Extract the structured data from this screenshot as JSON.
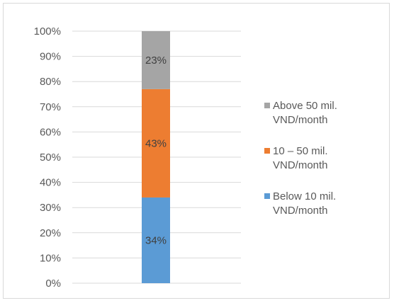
{
  "chart_data": {
    "type": "bar",
    "stacked": true,
    "categories": [
      ""
    ],
    "series": [
      {
        "name": "Below 10 mil. VND/month",
        "values": [
          34
        ],
        "label": "34%",
        "color": "#5b9bd5"
      },
      {
        "name": "10 – 50 mil. VND/month",
        "values": [
          43
        ],
        "label": "43%",
        "color": "#ed7d31"
      },
      {
        "name": "Above 50 mil. VND/month",
        "values": [
          23
        ],
        "label": "23%",
        "color": "#a5a5a5"
      }
    ],
    "ylim": [
      0,
      100
    ],
    "yticks": [
      "0%",
      "10%",
      "20%",
      "30%",
      "40%",
      "50%",
      "60%",
      "70%",
      "80%",
      "90%",
      "100%"
    ],
    "grid": true,
    "legend": {
      "position": "right",
      "items": [
        {
          "lines": [
            "Above 50 mil.",
            "VND/month"
          ],
          "color": "#a5a5a5"
        },
        {
          "lines": [
            "10 – 50 mil.",
            "VND/month"
          ],
          "color": "#ed7d31"
        },
        {
          "lines": [
            "Below 10 mil.",
            "VND/month"
          ],
          "color": "#5b9bd5"
        }
      ]
    }
  }
}
